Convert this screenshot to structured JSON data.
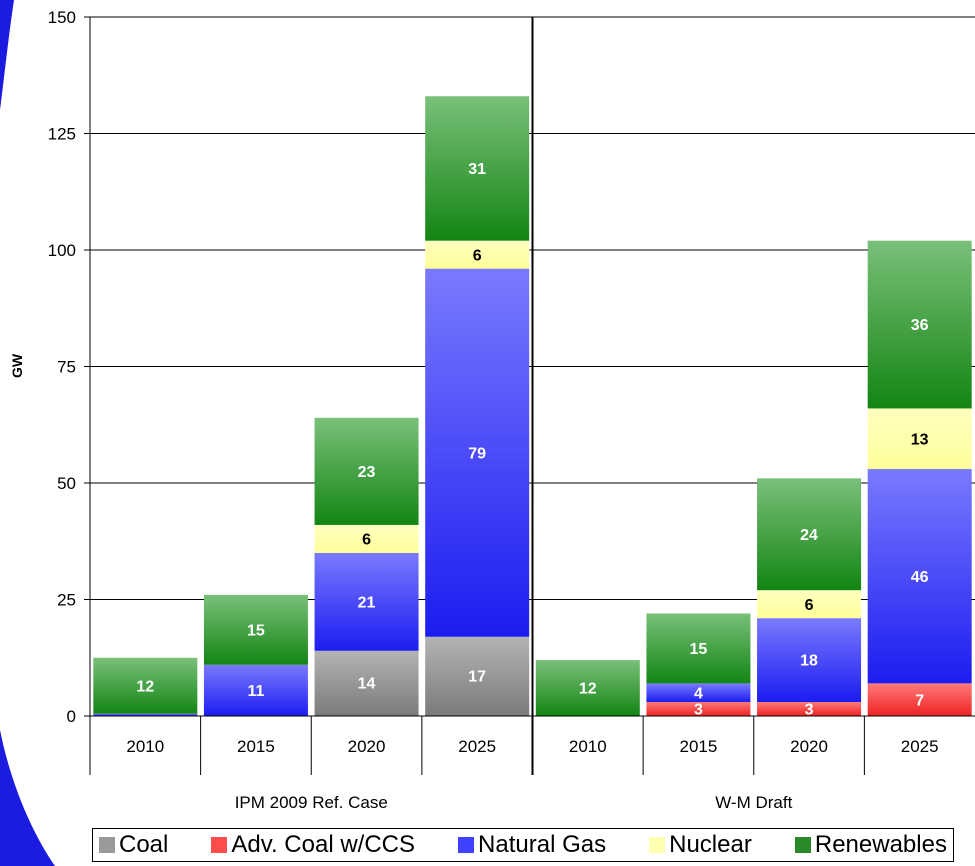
{
  "chart_data": {
    "type": "bar",
    "stacked": true,
    "ylabel": "GW",
    "ylim": [
      0,
      150
    ],
    "yticks": [
      0,
      25,
      50,
      75,
      100,
      125,
      150
    ],
    "grid": true,
    "legend_position": "bottom",
    "groups": [
      "IPM 2009 Ref. Case",
      "W-M Draft"
    ],
    "categories": [
      "2010",
      "2015",
      "2020",
      "2025",
      "2010",
      "2015",
      "2020",
      "2025"
    ],
    "series": [
      {
        "name": "Coal",
        "color": "#8c8c8c",
        "values": [
          0,
          0,
          14,
          17,
          0,
          0,
          0,
          0
        ]
      },
      {
        "name": "Adv. Coal w/CCS",
        "color": "#ff4d4d",
        "values": [
          0,
          0,
          0,
          0,
          0,
          3,
          3,
          7
        ]
      },
      {
        "name": "Natural Gas",
        "color": "#4040ff",
        "values": [
          0.5,
          11,
          21,
          79,
          0,
          4,
          18,
          46
        ]
      },
      {
        "name": "Nuclear",
        "color": "#ffffb0",
        "values": [
          0,
          0,
          6,
          6,
          0,
          0,
          6,
          13
        ]
      },
      {
        "name": "Renewables",
        "color": "#2a8a2a",
        "values": [
          12,
          15,
          23,
          31,
          12,
          15,
          24,
          36
        ]
      }
    ],
    "data_labels": [
      [
        "",
        "",
        "14",
        "17",
        "",
        "",
        "",
        ""
      ],
      [
        "",
        "",
        "",
        "",
        "",
        "3",
        "3",
        "7"
      ],
      [
        "",
        "11",
        "21",
        "79",
        "",
        "4",
        "18",
        "46"
      ],
      [
        "",
        "",
        "6",
        "6",
        "",
        "",
        "6",
        "13"
      ],
      [
        "12",
        "15",
        "23",
        "31",
        "12",
        "15",
        "24",
        "36"
      ]
    ]
  },
  "legend": {
    "coal": "Coal",
    "adv_coal": "Adv. Coal w/CCS",
    "natural_gas": "Natural Gas",
    "nuclear": "Nuclear",
    "renewables": "Renewables"
  }
}
